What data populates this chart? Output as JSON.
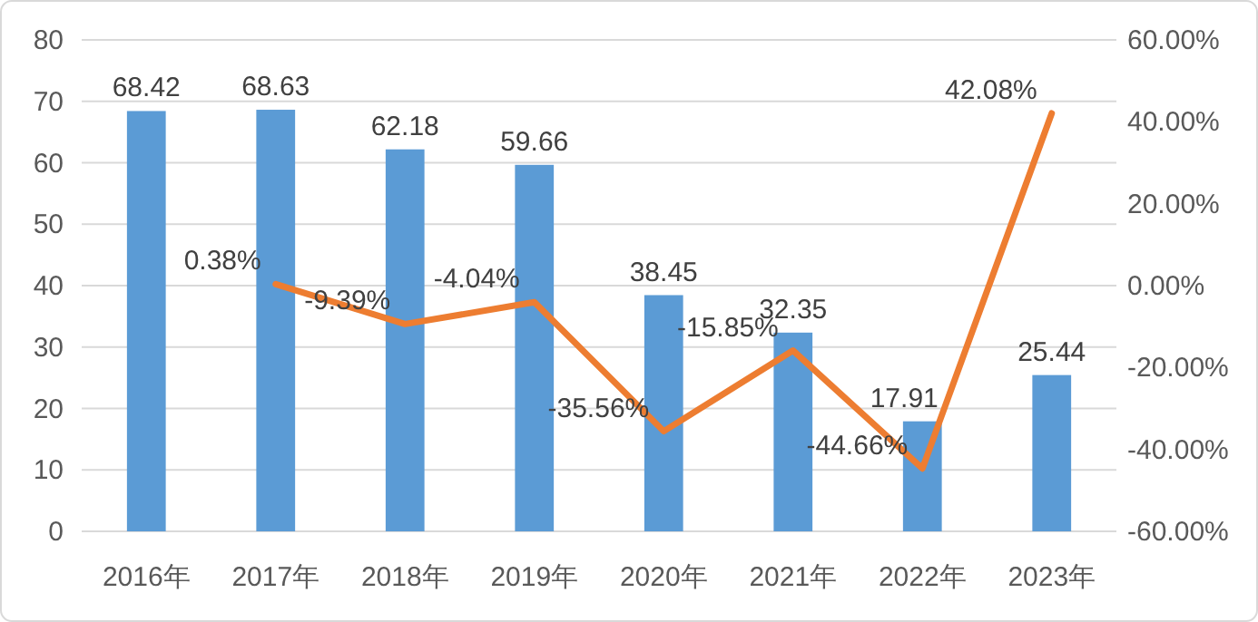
{
  "chart_data": {
    "type": "bar",
    "categories": [
      "2016年",
      "2017年",
      "2018年",
      "2019年",
      "2020年",
      "2021年",
      "2022年",
      "2023年"
    ],
    "series": [
      {
        "color": "#5b9bd5",
        "values": [
          68.42,
          68.63,
          62.18,
          59.66,
          38.45,
          32.35,
          17.91,
          25.44
        ],
        "value_labels": [
          "68.42",
          "68.63",
          "62.18",
          "59.66",
          "38.45",
          "32.35",
          "17.91",
          "25.44"
        ]
      },
      {
        "type": "line",
        "axis": "y2",
        "color": "#ed7d31",
        "values": [
          null,
          0.38,
          -9.39,
          -4.04,
          -35.56,
          -15.85,
          -44.66,
          42.08
        ],
        "value_labels": [
          null,
          "0.38%",
          "-9.39%",
          "-4.04%",
          "-35.56%",
          "-15.85%",
          "-44.66%",
          "42.08%"
        ]
      }
    ],
    "ylim": [
      0,
      80
    ],
    "yticks": [
      0,
      10,
      20,
      30,
      40,
      50,
      60,
      70,
      80
    ],
    "y2lim": [
      -60,
      60
    ],
    "y2ticks": [
      {
        "value": -60,
        "label": "-60.00%"
      },
      {
        "value": -40,
        "label": "-40.00%"
      },
      {
        "value": -20,
        "label": "-20.00%"
      },
      {
        "value": 0,
        "label": "0.00%"
      },
      {
        "value": 20,
        "label": "20.00%"
      },
      {
        "value": 40,
        "label": "40.00%"
      },
      {
        "value": 60,
        "label": "60.00%"
      }
    ],
    "grid": "y",
    "marker": "none",
    "line_style": "solid"
  }
}
